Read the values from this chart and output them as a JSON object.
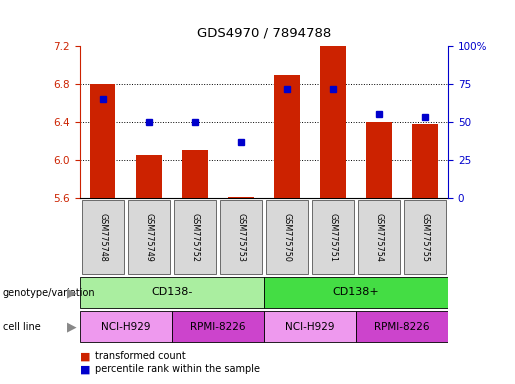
{
  "title": "GDS4970 / 7894788",
  "samples": [
    "GSM775748",
    "GSM775749",
    "GSM775752",
    "GSM775753",
    "GSM775750",
    "GSM775751",
    "GSM775754",
    "GSM775755"
  ],
  "red_values": [
    6.8,
    6.05,
    6.1,
    5.61,
    6.9,
    7.2,
    6.4,
    6.38
  ],
  "blue_values": [
    65,
    50,
    50,
    37,
    72,
    72,
    55,
    53
  ],
  "ylim": [
    5.6,
    7.2
  ],
  "y2lim": [
    0,
    100
  ],
  "yticks": [
    5.6,
    6.0,
    6.4,
    6.8,
    7.2
  ],
  "y2ticks": [
    0,
    25,
    50,
    75,
    100
  ],
  "red_color": "#cc2200",
  "blue_color": "#0000cc",
  "bar_width": 0.55,
  "geno_groups": [
    {
      "label": "CD138-",
      "color": "#aaeea0",
      "start": 0,
      "end": 3
    },
    {
      "label": "CD138+",
      "color": "#44dd44",
      "start": 4,
      "end": 7
    }
  ],
  "cell_groups": [
    {
      "label": "NCI-H929",
      "color": "#ee99ee",
      "start": 0,
      "end": 1
    },
    {
      "label": "RPMI-8226",
      "color": "#cc44cc",
      "start": 2,
      "end": 3
    },
    {
      "label": "NCI-H929",
      "color": "#ee99ee",
      "start": 4,
      "end": 5
    },
    {
      "label": "RPMI-8226",
      "color": "#cc44cc",
      "start": 6,
      "end": 7
    }
  ],
  "legend_red": "transformed count",
  "legend_blue": "percentile rank within the sample",
  "label_genotype": "genotype/variation",
  "label_cellline": "cell line",
  "bg_color": "#ffffff"
}
